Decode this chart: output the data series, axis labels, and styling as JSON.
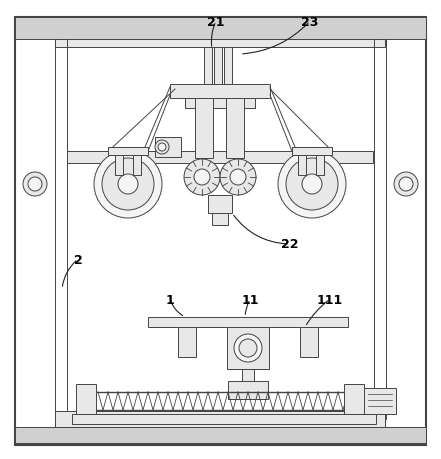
{
  "bg_color": "#ffffff",
  "line_color": "#444444",
  "fill_light": "#e8e8e8",
  "fill_mid": "#d0d0d0",
  "fill_white": "#f5f5f5",
  "label_fontsize": 9,
  "figsize": [
    4.41,
    4.6
  ],
  "dpi": 100
}
